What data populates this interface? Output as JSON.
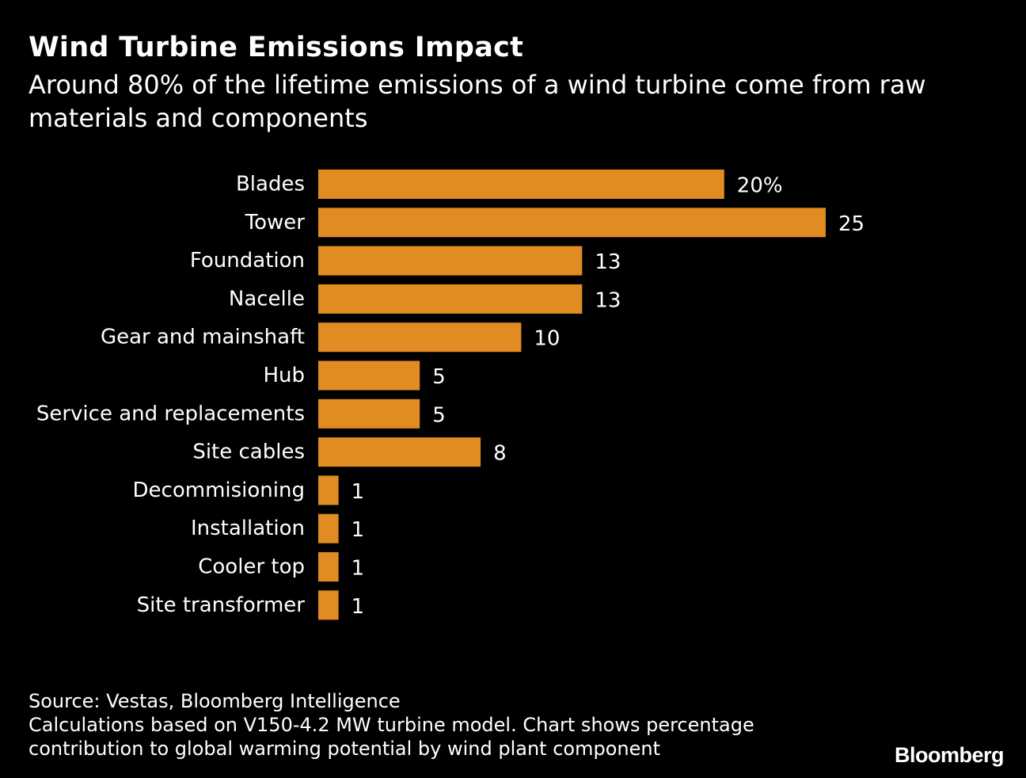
{
  "header": {
    "title": "Wind Turbine Emissions Impact",
    "subtitle": "Around 80% of the lifetime emissions of a wind turbine come from raw materials and components"
  },
  "chart_data": {
    "type": "bar",
    "orientation": "horizontal",
    "categories": [
      "Blades",
      "Tower",
      "Foundation",
      "Nacelle",
      "Gear and mainshaft",
      "Hub",
      "Service and replacements",
      "Site cables",
      "Decommisioning",
      "Installation",
      "Cooler top",
      "Site transformer"
    ],
    "values": [
      20,
      25,
      13,
      13,
      10,
      5,
      5,
      8,
      1,
      1,
      1,
      1
    ],
    "value_labels": [
      "20%",
      "25",
      "13",
      "13",
      "10",
      "5",
      "5",
      "8",
      "1",
      "1",
      "1",
      "1"
    ],
    "xlim": [
      0,
      25
    ],
    "grid": false,
    "bar_color": "#e08c22"
  },
  "footer": {
    "source": "Source: Vestas, Bloomberg Intelligence",
    "note_line1": "Calculations based on V150-4.2 MW turbine model. Chart shows percentage",
    "note_line2": "contribution to global warming potential by wind plant component"
  },
  "brand": "Bloomberg"
}
